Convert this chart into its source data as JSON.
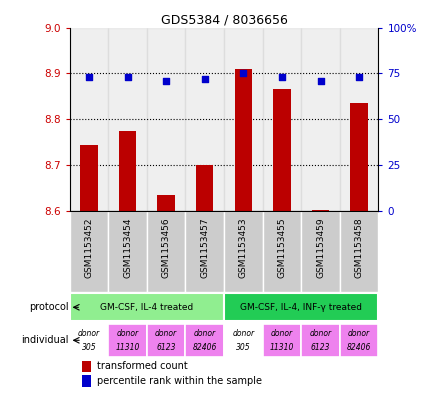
{
  "title": "GDS5384 / 8036656",
  "samples": [
    "GSM1153452",
    "GSM1153454",
    "GSM1153456",
    "GSM1153457",
    "GSM1153453",
    "GSM1153455",
    "GSM1153459",
    "GSM1153458"
  ],
  "bar_values": [
    8.745,
    8.775,
    8.635,
    8.7,
    8.91,
    8.865,
    8.603,
    8.835
  ],
  "scatter_values": [
    73,
    73,
    71,
    72,
    75,
    73,
    71,
    73
  ],
  "ylim_left": [
    8.6,
    9.0
  ],
  "ylim_right": [
    0,
    100
  ],
  "yticks_left": [
    8.6,
    8.7,
    8.8,
    8.9,
    9.0
  ],
  "yticks_right": [
    0,
    25,
    50,
    75,
    100
  ],
  "ytick_labels_right": [
    "0",
    "25",
    "50",
    "75",
    "100%"
  ],
  "bar_color": "#bb0000",
  "scatter_color": "#0000cc",
  "baseline": 8.6,
  "protocol_labels": [
    "GM-CSF, IL-4 treated",
    "GM-CSF, IL-4, INF-γ treated"
  ],
  "protocol_colors": [
    "#90ee90",
    "#22cc55"
  ],
  "individual_labels": [
    "donor\n305",
    "donor\n11310",
    "donor\n6123",
    "donor\n82406",
    "donor\n305",
    "donor\n11310",
    "donor\n6123",
    "donor\n82406"
  ],
  "individual_colors": [
    "#ffffff",
    "#ee82ee",
    "#ee82ee",
    "#ee82ee",
    "#ffffff",
    "#ee82ee",
    "#ee82ee",
    "#ee82ee"
  ],
  "sample_bg_color": "#cccccc",
  "legend_red_label": "transformed count",
  "legend_blue_label": "percentile rank within the sample",
  "left_tick_color": "#cc0000",
  "right_tick_color": "#0000cc",
  "grid_color": "black",
  "grid_lines": [
    8.7,
    8.8,
    8.9
  ],
  "top_spine_visible": false,
  "right_ax_top_spine_visible": false
}
